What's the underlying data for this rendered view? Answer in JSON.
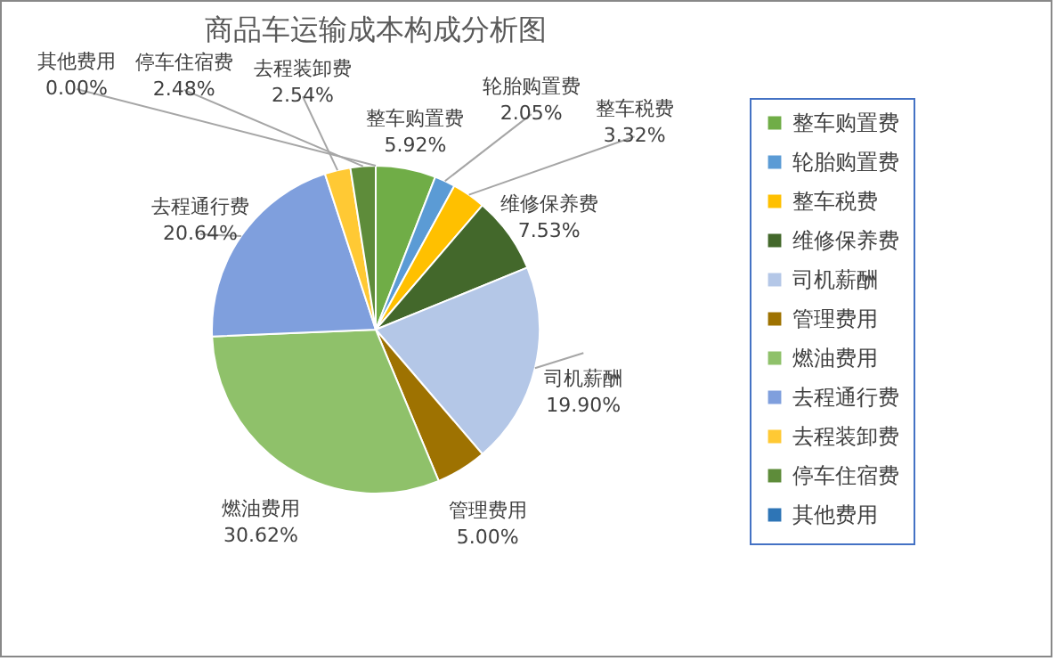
{
  "chart_data": {
    "type": "pie",
    "title": "商品车运输成本构成分析图",
    "categories": [
      "整车购置费",
      "轮胎购置费",
      "整车税费",
      "维修保养费",
      "司机薪酬",
      "管理费用",
      "燃油费用",
      "去程通行费",
      "去程装卸费",
      "停车住宿费",
      "其他费用"
    ],
    "values": [
      5.92,
      2.05,
      3.32,
      7.53,
      19.9,
      5.0,
      30.62,
      20.64,
      2.54,
      2.48,
      0.0
    ],
    "value_labels": [
      "5.92%",
      "2.05%",
      "3.32%",
      "7.53%",
      "19.90%",
      "5.00%",
      "30.62%",
      "20.64%",
      "2.54%",
      "2.48%",
      "0.00%"
    ],
    "colors": [
      "#70ad47",
      "#5b9bd5",
      "#ffc000",
      "#43682b",
      "#b4c7e7",
      "#9e7201",
      "#8fc16a",
      "#7f9fdd",
      "#ffc934",
      "#5e8c3a",
      "#2e75b6"
    ],
    "legend": "right"
  }
}
